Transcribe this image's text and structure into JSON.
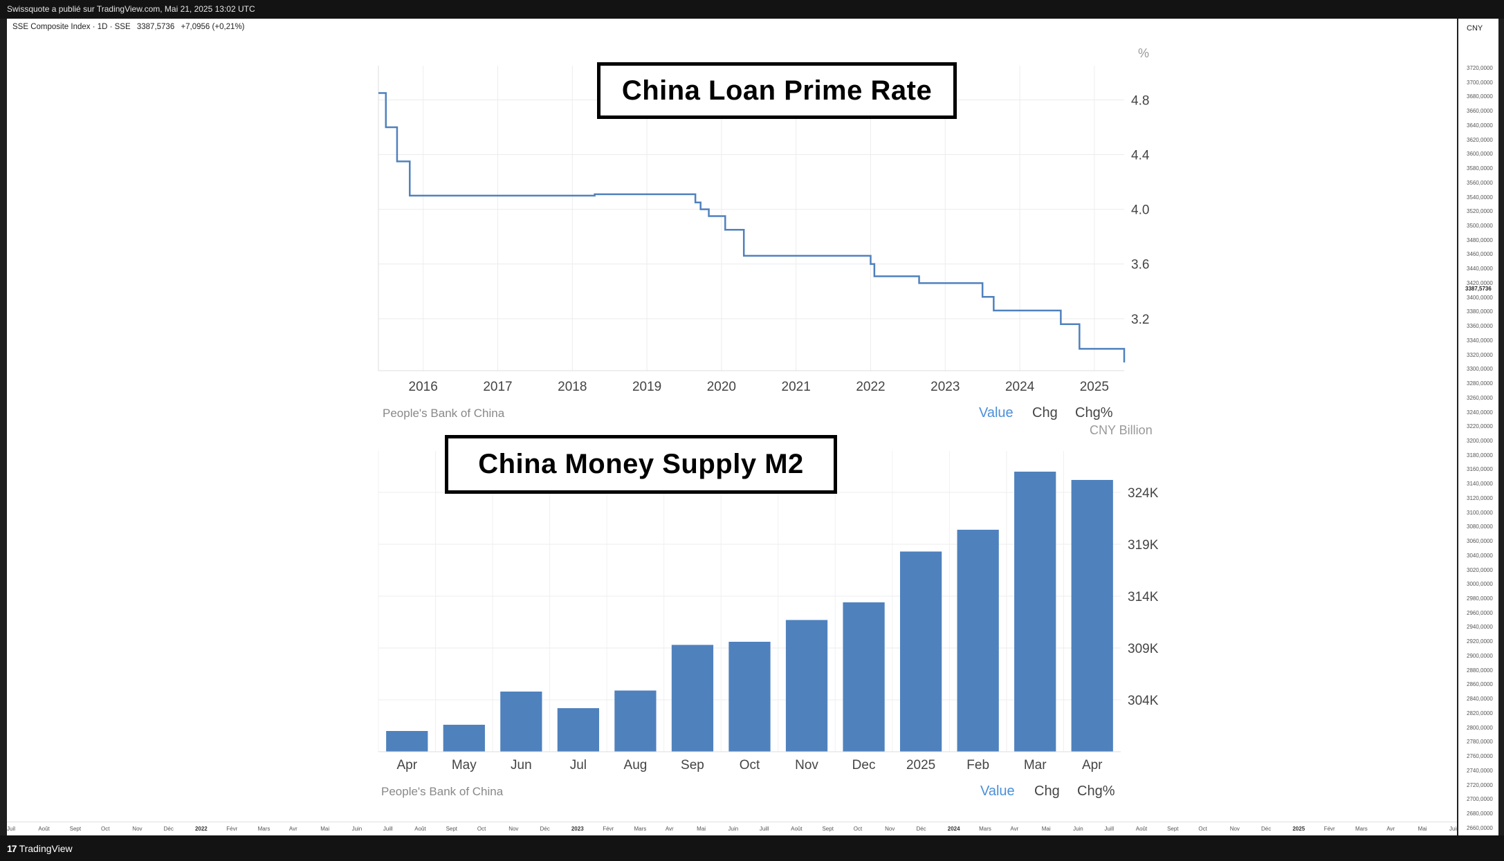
{
  "topbar": {
    "text": "Swissquote a publié sur TradingView.com, Mai 21, 2025 13:02 UTC"
  },
  "symbol": {
    "name": "SSE Composite Index · 1D · SSE",
    "price": "3387,5736",
    "change": "+7,0956 (+0,21%)"
  },
  "price_axis": {
    "currency": "CNY",
    "last_price": "3387,5736",
    "labels": [
      "3720,0000",
      "3700,0000",
      "3680,0000",
      "3660,0000",
      "3640,0000",
      "3620,0000",
      "3600,0000",
      "3580,0000",
      "3560,0000",
      "3540,0000",
      "3520,0000",
      "3500,0000",
      "3480,0000",
      "3460,0000",
      "3440,0000",
      "3420,0000",
      "3400,0000",
      "3380,0000",
      "3360,0000",
      "3340,0000",
      "3320,0000",
      "3300,0000",
      "3280,0000",
      "3260,0000",
      "3240,0000",
      "3220,0000",
      "3200,0000",
      "3180,0000",
      "3160,0000",
      "3140,0000",
      "3120,0000",
      "3100,0000",
      "3080,0000",
      "3060,0000",
      "3040,0000",
      "3020,0000",
      "3000,0000",
      "2980,0000",
      "2960,0000",
      "2940,0000",
      "2920,0000",
      "2900,0000",
      "2880,0000",
      "2860,0000",
      "2840,0000",
      "2820,0000",
      "2800,0000",
      "2780,0000",
      "2760,0000",
      "2740,0000",
      "2720,0000",
      "2700,0000",
      "2680,0000",
      "2660,0000"
    ]
  },
  "time_axis": {
    "labels": [
      {
        "t": "Juil",
        "yr": false
      },
      {
        "t": "Août",
        "yr": false
      },
      {
        "t": "Sept",
        "yr": false
      },
      {
        "t": "Oct",
        "yr": false
      },
      {
        "t": "Nov",
        "yr": false
      },
      {
        "t": "Déc",
        "yr": false
      },
      {
        "t": "2022",
        "yr": true
      },
      {
        "t": "Févr",
        "yr": false
      },
      {
        "t": "Mars",
        "yr": false
      },
      {
        "t": "Avr",
        "yr": false
      },
      {
        "t": "Mai",
        "yr": false
      },
      {
        "t": "Juin",
        "yr": false
      },
      {
        "t": "Juill",
        "yr": false
      },
      {
        "t": "Août",
        "yr": false
      },
      {
        "t": "Sept",
        "yr": false
      },
      {
        "t": "Oct",
        "yr": false
      },
      {
        "t": "Nov",
        "yr": false
      },
      {
        "t": "Déc",
        "yr": false
      },
      {
        "t": "2023",
        "yr": true
      },
      {
        "t": "Févr",
        "yr": false
      },
      {
        "t": "Mars",
        "yr": false
      },
      {
        "t": "Avr",
        "yr": false
      },
      {
        "t": "Mai",
        "yr": false
      },
      {
        "t": "Juin",
        "yr": false
      },
      {
        "t": "Juill",
        "yr": false
      },
      {
        "t": "Août",
        "yr": false
      },
      {
        "t": "Sept",
        "yr": false
      },
      {
        "t": "Oct",
        "yr": false
      },
      {
        "t": "Nov",
        "yr": false
      },
      {
        "t": "Déc",
        "yr": false
      },
      {
        "t": "2024",
        "yr": true
      },
      {
        "t": "Mars",
        "yr": false
      },
      {
        "t": "Avr",
        "yr": false
      },
      {
        "t": "Mai",
        "yr": false
      },
      {
        "t": "Juin",
        "yr": false
      },
      {
        "t": "Juill",
        "yr": false
      },
      {
        "t": "Août",
        "yr": false
      },
      {
        "t": "Sept",
        "yr": false
      },
      {
        "t": "Oct",
        "yr": false
      },
      {
        "t": "Nov",
        "yr": false
      },
      {
        "t": "Déc",
        "yr": false
      },
      {
        "t": "2025",
        "yr": true
      },
      {
        "t": "Févr",
        "yr": false
      },
      {
        "t": "Mars",
        "yr": false
      },
      {
        "t": "Avr",
        "yr": false
      },
      {
        "t": "Mai",
        "yr": false
      },
      {
        "t": "Juin",
        "yr": false
      }
    ]
  },
  "footer": {
    "logo_mark": "17",
    "logo_text": "TradingView"
  },
  "chart_data": [
    {
      "type": "line",
      "title": "China Loan Prime Rate",
      "unit": "%",
      "source": "People's Bank of China",
      "tabs": [
        "Value",
        "Chg",
        "Chg%"
      ],
      "active_tab": "Value",
      "x_ticks": [
        "2016",
        "2017",
        "2018",
        "2019",
        "2020",
        "2021",
        "2022",
        "2023",
        "2024",
        "2025"
      ],
      "y_ticks": [
        "4.8",
        "4.4",
        "4.0",
        "3.6",
        "3.2"
      ],
      "xlim": [
        2015.4,
        2025.4
      ],
      "ylim": [
        2.82,
        5.05
      ],
      "step": true,
      "series": [
        {
          "x": [
            2015.4,
            2015.5,
            2015.65,
            2015.82,
            2018.3,
            2019.65,
            2019.72,
            2019.83,
            2020.05,
            2020.3,
            2022.0,
            2022.05,
            2022.65,
            2023.5,
            2023.65,
            2024.55,
            2024.8,
            2025.38,
            2025.4
          ],
          "y": [
            4.85,
            4.6,
            4.35,
            4.1,
            4.11,
            4.05,
            4.0,
            3.95,
            3.85,
            3.66,
            3.6,
            3.51,
            3.46,
            3.36,
            3.26,
            3.16,
            2.98,
            2.98,
            2.88
          ]
        }
      ],
      "grid": true
    },
    {
      "type": "bar",
      "title": "China Money Supply M2",
      "unit": "CNY Billion",
      "source": "People's Bank of China",
      "tabs": [
        "Value",
        "Chg",
        "Chg%"
      ],
      "active_tab": "Value",
      "categories": [
        "Apr",
        "May",
        "Jun",
        "Jul",
        "Aug",
        "Sep",
        "Oct",
        "Nov",
        "Dec",
        "2025",
        "Feb",
        "Mar",
        "Apr"
      ],
      "values": [
        301000,
        301600,
        304800,
        303200,
        304900,
        309300,
        309600,
        311700,
        313400,
        318300,
        320400,
        326000,
        325200
      ],
      "y_ticks": [
        "304K",
        "309K",
        "314K",
        "319K",
        "324K"
      ],
      "ylim": [
        299000,
        328000
      ],
      "grid": true
    }
  ]
}
